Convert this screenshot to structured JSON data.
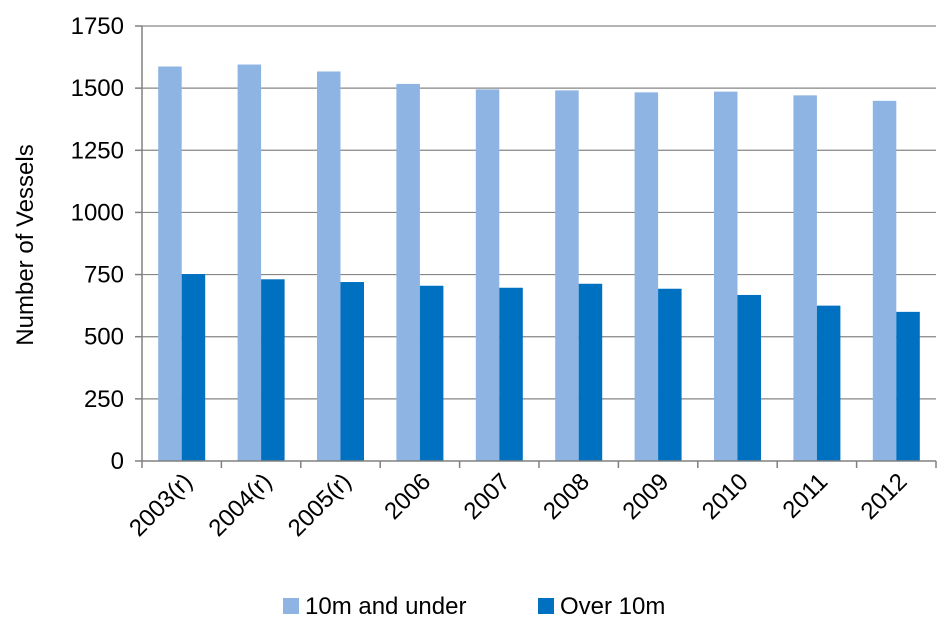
{
  "chart_data": {
    "type": "bar",
    "title": "",
    "xlabel": "",
    "ylabel": "Number of Vessels",
    "ylim": [
      0,
      1750
    ],
    "yticks": [
      0,
      250,
      500,
      750,
      1000,
      1250,
      1500,
      1750
    ],
    "grid": true,
    "legend_position": "bottom",
    "categories": [
      "2003(r)",
      "2004(r)",
      "2005(r)",
      "2006",
      "2007",
      "2008",
      "2009",
      "2010",
      "2011",
      "2012"
    ],
    "series": [
      {
        "name": "10m and under",
        "color": "#8DB4E2",
        "values": [
          1587,
          1595,
          1567,
          1517,
          1495,
          1491,
          1483,
          1486,
          1471,
          1449
        ]
      },
      {
        "name": "Over 10m",
        "color": "#0070C0",
        "values": [
          752,
          731,
          720,
          705,
          697,
          713,
          693,
          668,
          625,
          600
        ]
      }
    ]
  }
}
